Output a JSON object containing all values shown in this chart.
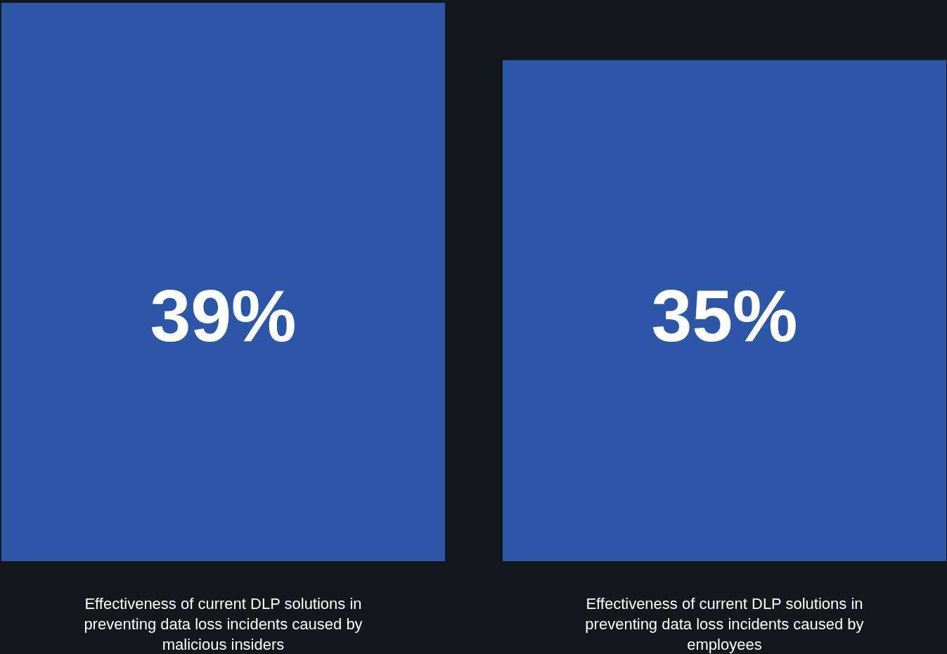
{
  "chart_data": {
    "type": "bar",
    "relative": false,
    "categories": [
      "Effectiveness of current DLP solutions in preventing data loss incidents caused by malicious insiders",
      "Effectiveness of current DLP solutions in preventing data loss incidents caused by employees"
    ],
    "values": [
      39,
      35
    ],
    "value_labels": [
      "39%",
      "35%"
    ],
    "color": "#2b57a6"
  }
}
